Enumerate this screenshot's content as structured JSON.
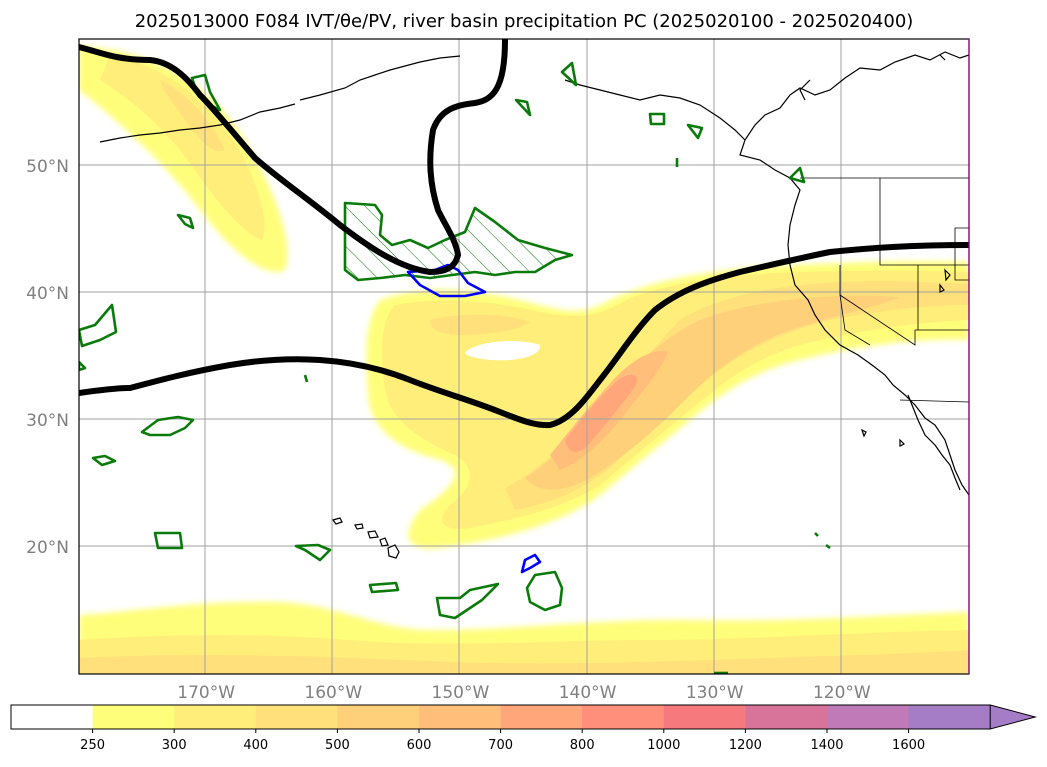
{
  "title": "2025013000 F084 IVT/θe/PV, river basin precipitation PC (2025020100 - 2025020400)",
  "map": {
    "lat_ticks": [
      {
        "label": "50°N",
        "value": 50
      },
      {
        "label": "40°N",
        "value": 40
      },
      {
        "label": "30°N",
        "value": 30
      },
      {
        "label": "20°N",
        "value": 20
      }
    ],
    "lon_ticks": [
      {
        "label": "170°W",
        "value": -170
      },
      {
        "label": "160°W",
        "value": -160
      },
      {
        "label": "150°W",
        "value": -150
      },
      {
        "label": "140°W",
        "value": -140
      },
      {
        "label": "130°W",
        "value": -130
      },
      {
        "label": "120°W",
        "value": -120
      }
    ],
    "colors": {
      "green_contour": "#0a7a0a",
      "blue_contour": "#0000ff",
      "pv_contour": "#000000",
      "gridline": "#a0a0a0"
    }
  },
  "colorbar": {
    "tick_labels": [
      "250",
      "300",
      "400",
      "500",
      "600",
      "700",
      "800",
      "1000",
      "1200",
      "1400",
      "1600"
    ],
    "colors": [
      "#ffffff",
      "#fffe7a",
      "#ffef7a",
      "#ffe07a",
      "#ffd07a",
      "#ffbf7a",
      "#ffa77a",
      "#ff8e7a",
      "#f6797e",
      "#d8749a",
      "#bf7ab7",
      "#a57cc6"
    ]
  }
}
